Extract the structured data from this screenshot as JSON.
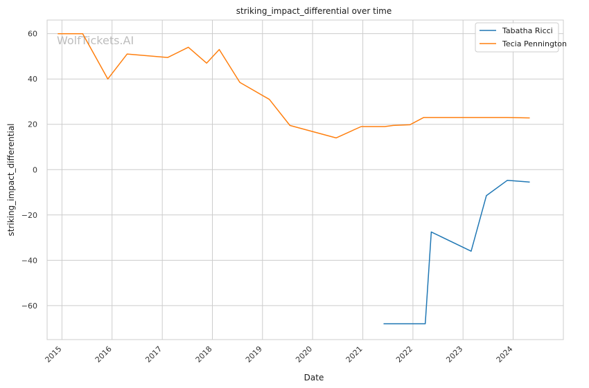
{
  "chart_data": {
    "type": "line",
    "title": "striking_impact_differential over time",
    "xlabel": "Date",
    "ylabel": "striking_impact_differential",
    "watermark": "WolfTickets.AI",
    "x_ticks": [
      "2015",
      "2016",
      "2017",
      "2018",
      "2019",
      "2020",
      "2021",
      "2022",
      "2023",
      "2024"
    ],
    "y_ticks": [
      -60,
      -40,
      -20,
      0,
      20,
      40,
      60
    ],
    "xlim": [
      "2014-09-15",
      "2025-01-01"
    ],
    "ylim": [
      -75,
      66
    ],
    "grid": true,
    "legend_position": "top-right",
    "series": [
      {
        "name": "Tabatha Ricci",
        "color": "#1f77b4",
        "points": [
          [
            "2021-06-01",
            -68
          ],
          [
            "2022-04-01",
            -68
          ],
          [
            "2022-05-15",
            -27.5
          ],
          [
            "2023-03-01",
            -36
          ],
          [
            "2023-06-20",
            -11.5
          ],
          [
            "2023-11-20",
            -4.7
          ],
          [
            "2024-05-01",
            -5.5
          ]
        ]
      },
      {
        "name": "Tecia Pennington",
        "color": "#ff7f0e",
        "points": [
          [
            "2014-12-01",
            60
          ],
          [
            "2015-06-01",
            60
          ],
          [
            "2015-12-01",
            40
          ],
          [
            "2016-04-20",
            51
          ],
          [
            "2017-02-10",
            49.5
          ],
          [
            "2017-07-10",
            54
          ],
          [
            "2017-11-20",
            47
          ],
          [
            "2018-02-20",
            53
          ],
          [
            "2018-07-20",
            38.5
          ],
          [
            "2019-02-20",
            31
          ],
          [
            "2019-07-20",
            19.5
          ],
          [
            "2020-06-20",
            14
          ],
          [
            "2020-12-20",
            19
          ],
          [
            "2021-06-10",
            19
          ],
          [
            "2021-08-10",
            19.5
          ],
          [
            "2021-12-10",
            19.8
          ],
          [
            "2022-03-20",
            23
          ],
          [
            "2023-11-20",
            23
          ],
          [
            "2024-05-01",
            22.8
          ]
        ]
      }
    ]
  }
}
